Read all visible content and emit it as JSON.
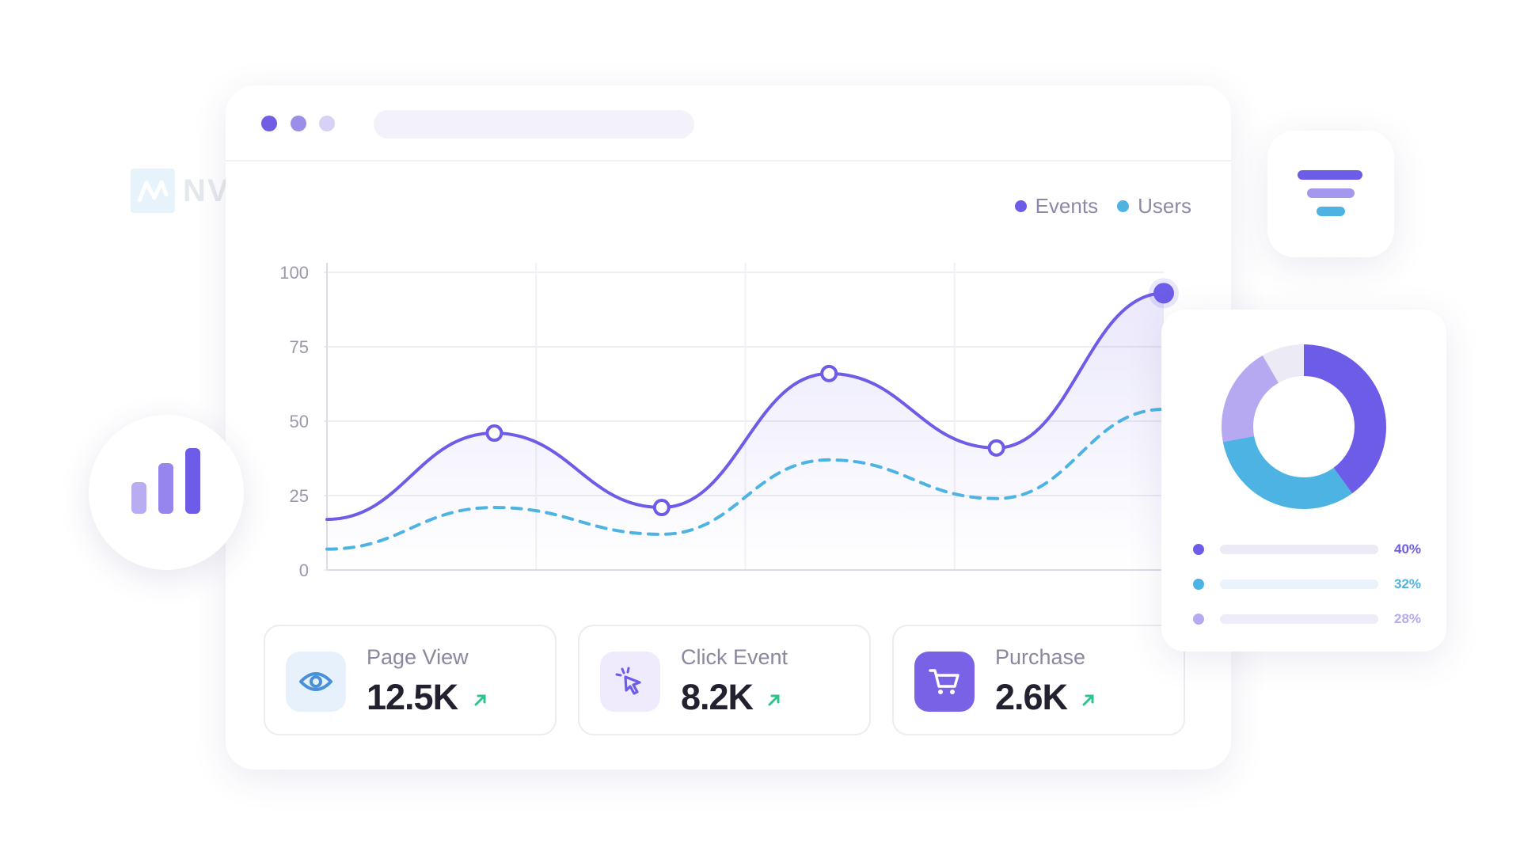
{
  "logo": {
    "text": "NVECTA"
  },
  "window": {
    "dots": [
      "#6f5ee3",
      "#9a8ee9",
      "#d7d1f5"
    ]
  },
  "legend": [
    {
      "label": "Events",
      "color": "#6c5ce7"
    },
    {
      "label": "Users",
      "color": "#4db3e3"
    }
  ],
  "chart_data": {
    "type": "line",
    "yticks": [
      "100",
      "75",
      "50",
      "25",
      "0"
    ],
    "ylim": [
      0,
      100
    ],
    "grid": true,
    "series": [
      {
        "name": "Events",
        "color": "#6c5ce7",
        "style": "solid",
        "x": [
          0,
          1,
          2,
          3,
          4,
          5
        ],
        "values": [
          17,
          46,
          21,
          66,
          41,
          93
        ],
        "highlighted_points": [
          1,
          2,
          3,
          4,
          5
        ]
      },
      {
        "name": "Users",
        "color": "#4db3e3",
        "style": "dashed",
        "x": [
          0,
          1,
          2,
          3,
          4,
          5
        ],
        "values": [
          7,
          21,
          12,
          37,
          24,
          54
        ]
      }
    ]
  },
  "metrics": [
    {
      "label": "Page View",
      "value": "12.5K",
      "icon": "eye-icon",
      "trend": "up",
      "icon_bg": "#e6f1fc",
      "icon_color": "#4a90d9"
    },
    {
      "label": "Click Event",
      "value": "8.2K",
      "icon": "cursor-click-icon",
      "trend": "up",
      "icon_bg": "#efeafc",
      "icon_color": "#6c5ce7"
    },
    {
      "label": "Purchase",
      "value": "2.6K",
      "icon": "cart-icon",
      "trend": "up",
      "icon_bg": "#7a62e6",
      "icon_color": "#ffffff"
    }
  ],
  "donut": {
    "segments": [
      {
        "percent": 40,
        "label": "40%",
        "color": "#6c5ce7"
      },
      {
        "percent": 32,
        "label": "32%",
        "color": "#4db3e3"
      },
      {
        "percent": 28,
        "label": "28%",
        "color": "#b6a9f1"
      }
    ],
    "remainder_color": "#ecebf5"
  },
  "icons": {
    "bar_chart": "bar-chart-icon",
    "filter": "filter-icon",
    "trend_up": "trend-up-arrow-icon"
  },
  "accent_color": "#6c5ce7"
}
